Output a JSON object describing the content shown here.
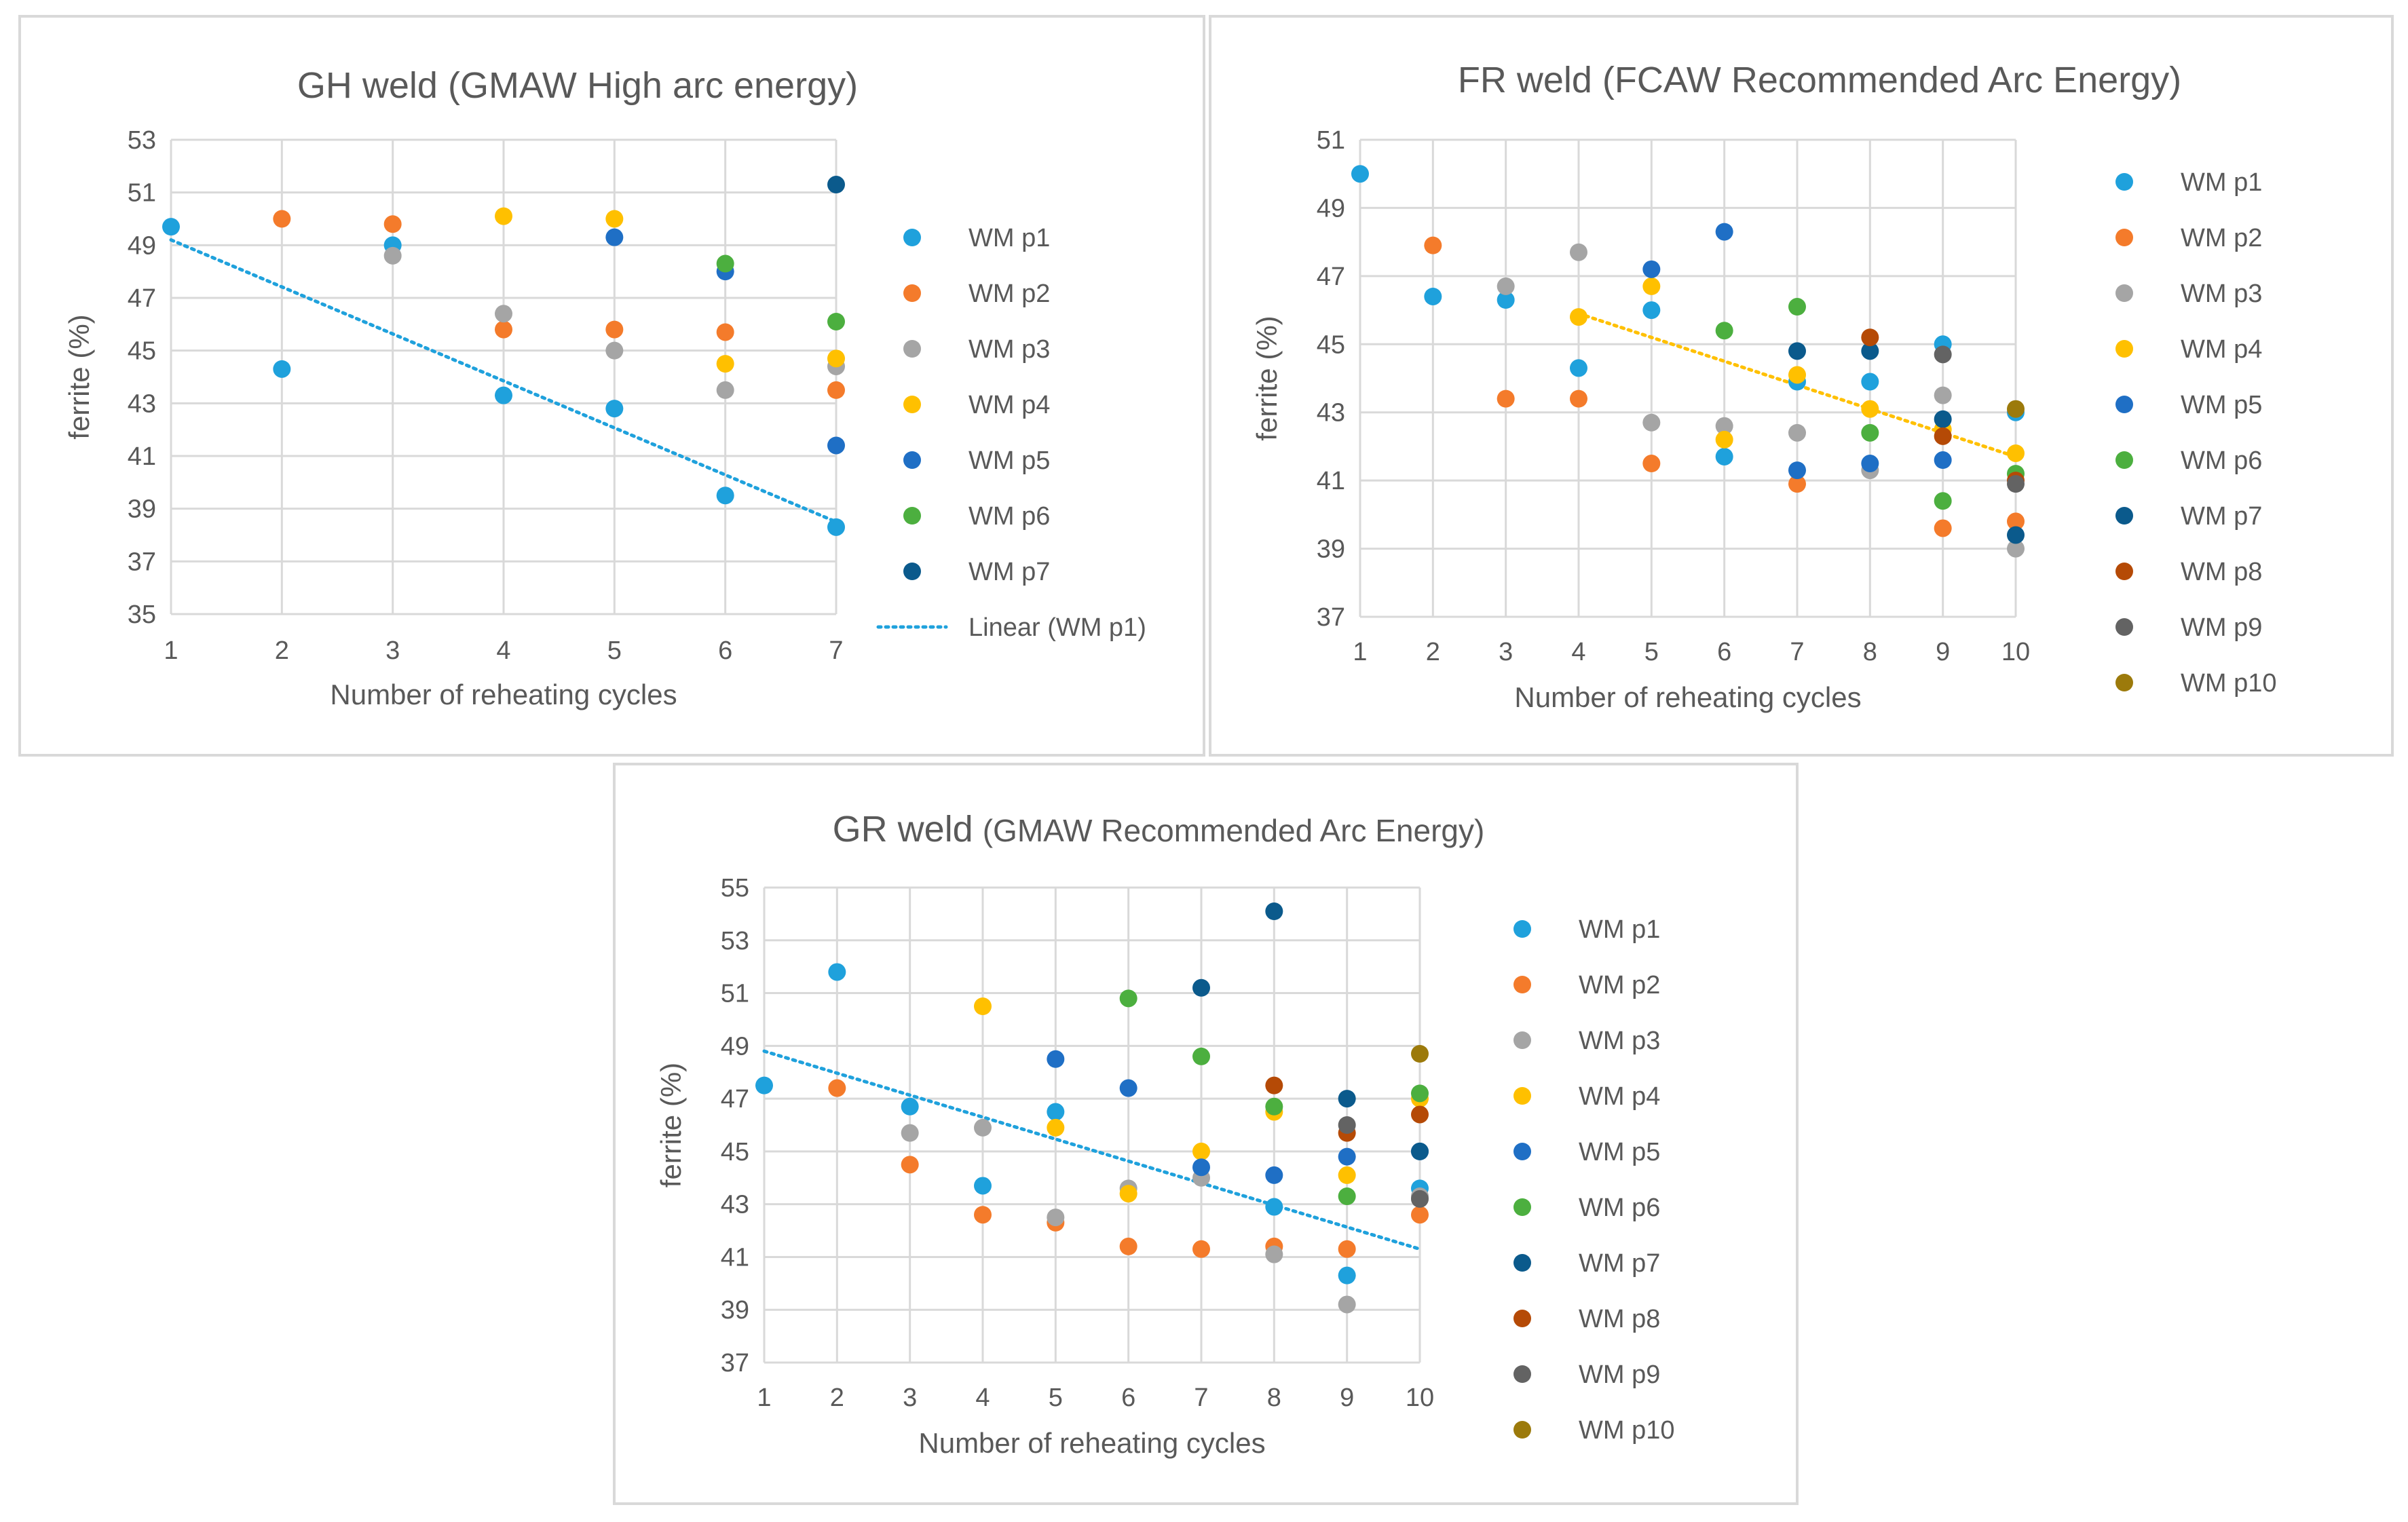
{
  "colors": {
    "WM p1": "#1fa1dc",
    "WM p2": "#f47b2b",
    "WM p3": "#a5a5a5",
    "WM p4": "#ffc000",
    "WM p5": "#1f6fc5",
    "WM p6": "#4caf3f",
    "WM p7": "#0b5a8c",
    "WM p8": "#b54a06",
    "WM p9": "#636363",
    "WM p10": "#9c7a0b"
  },
  "chart_data": [
    {
      "type": "scatter",
      "title": "GH weld (GMAW High arc energy)",
      "title_sub": "",
      "xlabel": "Number of reheating cycles",
      "ylabel": "ferrite (%)",
      "xlim": [
        1,
        7
      ],
      "ylim": [
        35,
        53
      ],
      "xticks": [
        "1",
        "2",
        "3",
        "4",
        "5",
        "6",
        "7"
      ],
      "yticks": [
        "35",
        "37",
        "39",
        "41",
        "43",
        "45",
        "47",
        "49",
        "51",
        "53"
      ],
      "grid": true,
      "legend_position": "right",
      "legend": [
        "WM p1",
        "WM p2",
        "WM p3",
        "WM p4",
        "WM p5",
        "WM p6",
        "WM p7",
        "Linear (WM p1)"
      ],
      "series": [
        {
          "name": "WM p1",
          "points": [
            [
              1,
              49.7
            ],
            [
              2,
              44.3
            ],
            [
              3,
              49.0
            ],
            [
              4,
              43.3
            ],
            [
              5,
              42.8
            ],
            [
              6,
              39.5
            ],
            [
              7,
              38.3
            ]
          ]
        },
        {
          "name": "WM p2",
          "points": [
            [
              2,
              50.0
            ],
            [
              3,
              49.8
            ],
            [
              4,
              45.8
            ],
            [
              5,
              45.8
            ],
            [
              6,
              45.7
            ],
            [
              7,
              43.5
            ]
          ]
        },
        {
          "name": "WM p3",
          "points": [
            [
              3,
              48.6
            ],
            [
              4,
              46.4
            ],
            [
              5,
              45.0
            ],
            [
              6,
              43.5
            ],
            [
              7,
              44.4
            ]
          ]
        },
        {
          "name": "WM p4",
          "points": [
            [
              4,
              50.1
            ],
            [
              5,
              50.0
            ],
            [
              6,
              44.5
            ],
            [
              7,
              44.7
            ]
          ]
        },
        {
          "name": "WM p5",
          "points": [
            [
              5,
              49.3
            ],
            [
              6,
              48.0
            ],
            [
              7,
              41.4
            ]
          ]
        },
        {
          "name": "WM p6",
          "points": [
            [
              6,
              48.3
            ],
            [
              7,
              46.1
            ]
          ]
        },
        {
          "name": "WM p7",
          "points": [
            [
              7,
              51.3
            ]
          ]
        }
      ],
      "trendline": {
        "name": "Linear (WM p1)",
        "series": "WM p1",
        "from": [
          1,
          49.2
        ],
        "to": [
          7,
          38.5
        ]
      }
    },
    {
      "type": "scatter",
      "title": "FR weld (FCAW Recommended  Arc Energy)",
      "title_sub": "",
      "xlabel": "Number of reheating cycles",
      "ylabel": "ferrite (%)",
      "xlim": [
        1,
        10
      ],
      "ylim": [
        37,
        51
      ],
      "xticks": [
        "1",
        "2",
        "3",
        "4",
        "5",
        "6",
        "7",
        "8",
        "9",
        "10"
      ],
      "yticks": [
        "37",
        "39",
        "41",
        "43",
        "45",
        "47",
        "49",
        "51"
      ],
      "grid": true,
      "legend_position": "right",
      "legend": [
        "WM p1",
        "WM p2",
        "WM p3",
        "WM p4",
        "WM p5",
        "WM p6",
        "WM p7",
        "WM p8",
        "WM p9",
        "WM p10"
      ],
      "series": [
        {
          "name": "WM p1",
          "points": [
            [
              1,
              50.0
            ],
            [
              2,
              46.4
            ],
            [
              3,
              46.3
            ],
            [
              4,
              44.3
            ],
            [
              5,
              46.0
            ],
            [
              6,
              41.7
            ],
            [
              7,
              43.9
            ],
            [
              8,
              43.9
            ],
            [
              9,
              45.0
            ],
            [
              10,
              43.0
            ]
          ]
        },
        {
          "name": "WM p2",
          "points": [
            [
              2,
              47.9
            ],
            [
              3,
              43.4
            ],
            [
              4,
              43.4
            ],
            [
              5,
              41.5
            ],
            [
              7,
              40.9
            ],
            [
              9,
              39.6
            ],
            [
              10,
              39.8
            ]
          ]
        },
        {
          "name": "WM p3",
          "points": [
            [
              3,
              46.7
            ],
            [
              4,
              47.7
            ],
            [
              5,
              42.7
            ],
            [
              6,
              42.6
            ],
            [
              7,
              42.4
            ],
            [
              8,
              41.3
            ],
            [
              9,
              43.5
            ],
            [
              10,
              39.0
            ]
          ]
        },
        {
          "name": "WM p4",
          "points": [
            [
              4,
              45.8
            ],
            [
              5,
              46.7
            ],
            [
              6,
              42.2
            ],
            [
              7,
              44.1
            ],
            [
              8,
              43.1
            ],
            [
              9,
              42.5
            ],
            [
              10,
              41.8
            ]
          ]
        },
        {
          "name": "WM p5",
          "points": [
            [
              5,
              47.2
            ],
            [
              6,
              48.3
            ],
            [
              7,
              41.3
            ],
            [
              8,
              41.5
            ],
            [
              9,
              41.6
            ]
          ]
        },
        {
          "name": "WM p6",
          "points": [
            [
              6,
              45.4
            ],
            [
              7,
              46.1
            ],
            [
              8,
              42.4
            ],
            [
              9,
              40.4
            ],
            [
              10,
              41.2
            ]
          ]
        },
        {
          "name": "WM p7",
          "points": [
            [
              7,
              44.8
            ],
            [
              8,
              44.8
            ],
            [
              9,
              42.8
            ],
            [
              10,
              39.4
            ]
          ]
        },
        {
          "name": "WM p8",
          "points": [
            [
              8,
              45.2
            ],
            [
              9,
              42.3
            ],
            [
              10,
              41.0
            ]
          ]
        },
        {
          "name": "WM p9",
          "points": [
            [
              9,
              44.7
            ],
            [
              10,
              40.9
            ]
          ]
        },
        {
          "name": "WM p10",
          "points": [
            [
              10,
              43.1
            ]
          ]
        }
      ],
      "trendline": {
        "name": "",
        "series": "WM p4",
        "from": [
          4,
          45.9
        ],
        "to": [
          10,
          41.7
        ]
      }
    },
    {
      "type": "scatter",
      "title": "GR weld",
      "title_sub": "(GMAW Recommended  Arc Energy)",
      "xlabel": "Number of reheating cycles",
      "ylabel": "ferrite (%)",
      "xlim": [
        1,
        10
      ],
      "ylim": [
        37,
        55
      ],
      "xticks": [
        "1",
        "2",
        "3",
        "4",
        "5",
        "6",
        "7",
        "8",
        "9",
        "10"
      ],
      "yticks": [
        "37",
        "39",
        "41",
        "43",
        "45",
        "47",
        "49",
        "51",
        "53",
        "55"
      ],
      "grid": true,
      "legend_position": "right",
      "legend": [
        "WM p1",
        "WM p2",
        "WM p3",
        "WM p4",
        "WM p5",
        "WM p6",
        "WM p7",
        "WM p8",
        "WM p9",
        "WM p10"
      ],
      "series": [
        {
          "name": "WM p1",
          "points": [
            [
              1,
              47.5
            ],
            [
              2,
              51.8
            ],
            [
              3,
              46.7
            ],
            [
              4,
              43.7
            ],
            [
              5,
              46.5
            ],
            [
              8,
              42.9
            ],
            [
              9,
              40.3
            ],
            [
              10,
              43.6
            ]
          ]
        },
        {
          "name": "WM p2",
          "points": [
            [
              2,
              47.4
            ],
            [
              3,
              44.5
            ],
            [
              4,
              42.6
            ],
            [
              5,
              42.3
            ],
            [
              6,
              41.4
            ],
            [
              7,
              41.3
            ],
            [
              8,
              41.4
            ],
            [
              9,
              41.3
            ],
            [
              10,
              42.6
            ]
          ]
        },
        {
          "name": "WM p3",
          "points": [
            [
              3,
              45.7
            ],
            [
              4,
              45.9
            ],
            [
              5,
              42.5
            ],
            [
              6,
              43.6
            ],
            [
              7,
              44.0
            ],
            [
              8,
              41.1
            ],
            [
              9,
              39.2
            ],
            [
              10,
              43.3
            ]
          ]
        },
        {
          "name": "WM p4",
          "points": [
            [
              4,
              50.5
            ],
            [
              5,
              45.9
            ],
            [
              6,
              43.4
            ],
            [
              7,
              45.0
            ],
            [
              8,
              46.5
            ],
            [
              9,
              44.1
            ],
            [
              10,
              47.0
            ]
          ]
        },
        {
          "name": "WM p5",
          "points": [
            [
              5,
              48.5
            ],
            [
              6,
              47.4
            ],
            [
              7,
              44.4
            ],
            [
              8,
              44.1
            ],
            [
              9,
              44.8
            ],
            [
              10,
              45.0
            ]
          ]
        },
        {
          "name": "WM p6",
          "points": [
            [
              6,
              50.8
            ],
            [
              7,
              48.6
            ],
            [
              8,
              46.7
            ],
            [
              9,
              43.3
            ],
            [
              10,
              47.2
            ]
          ]
        },
        {
          "name": "WM p7",
          "points": [
            [
              7,
              51.2
            ],
            [
              8,
              54.1
            ],
            [
              9,
              47.0
            ],
            [
              10,
              45.0
            ]
          ]
        },
        {
          "name": "WM p8",
          "points": [
            [
              8,
              47.5
            ],
            [
              9,
              45.7
            ],
            [
              10,
              46.4
            ]
          ]
        },
        {
          "name": "WM p9",
          "points": [
            [
              9,
              46.0
            ],
            [
              10,
              43.2
            ]
          ]
        },
        {
          "name": "WM p10",
          "points": [
            [
              10,
              48.7
            ]
          ]
        }
      ],
      "trendline": {
        "name": "",
        "series": "WM p1",
        "from": [
          1,
          48.8
        ],
        "to": [
          10,
          41.3
        ]
      }
    }
  ]
}
